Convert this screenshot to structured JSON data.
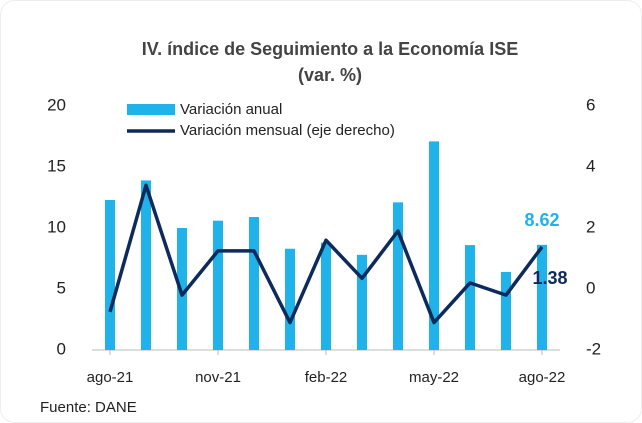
{
  "chart_data": {
    "type": "bar_line",
    "title": "IV. índice de Seguimiento a la Economía ISE",
    "subtitle": "(var. %)",
    "source": "Fuente: DANE",
    "categories": [
      "ago-21",
      null,
      null,
      "nov-21",
      null,
      null,
      "feb-22",
      null,
      null,
      "may-22",
      null,
      null,
      "ago-22"
    ],
    "series": [
      {
        "name": "Variación anual",
        "color": "#1fb3ea",
        "values": [
          12.3,
          13.9,
          10.0,
          10.6,
          10.9,
          8.3,
          8.8,
          7.8,
          12.1,
          17.1,
          8.6,
          6.4,
          8.62
        ]
      },
      {
        "name": "Variación mensual (eje derecho)",
        "color": "#0d2a5c",
        "axis": "y2",
        "values": [
          -0.75,
          3.4,
          -0.2,
          1.25,
          1.25,
          -1.1,
          1.6,
          0.35,
          1.9,
          -1.1,
          0.2,
          -0.2,
          1.38
        ]
      }
    ],
    "ylim": [
      0,
      20
    ],
    "yticks": [
      0,
      5,
      10,
      15,
      20
    ],
    "y2lim": [
      -2,
      6
    ],
    "y2ticks": [
      -2,
      0,
      2,
      4,
      6
    ],
    "legend": "top-left"
  }
}
